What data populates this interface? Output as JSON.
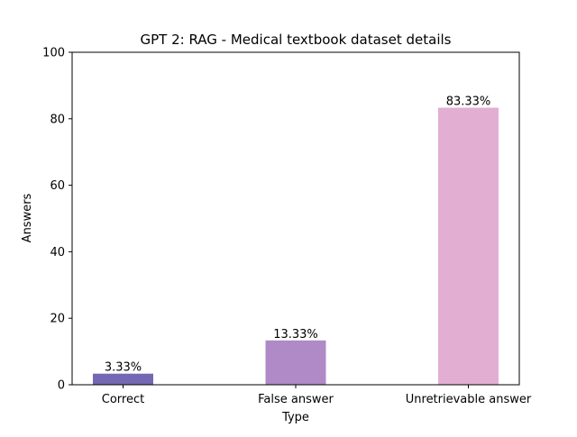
{
  "chart_data": {
    "type": "bar",
    "title": "GPT 2: RAG - Medical textbook dataset details",
    "xlabel": "Type",
    "ylabel": "Answers",
    "ylim": [
      0,
      100
    ],
    "yticks": [
      0,
      20,
      40,
      60,
      80,
      100
    ],
    "categories": [
      "Correct",
      "False answer",
      "Unretrievable answer"
    ],
    "values": [
      3.33,
      13.33,
      83.33
    ],
    "data_labels": [
      "3.33%",
      "13.33%",
      "83.33%"
    ],
    "colors": [
      "#7467b3",
      "#af8ac7",
      "#e2afd3"
    ],
    "grid": false,
    "legend": "none"
  }
}
